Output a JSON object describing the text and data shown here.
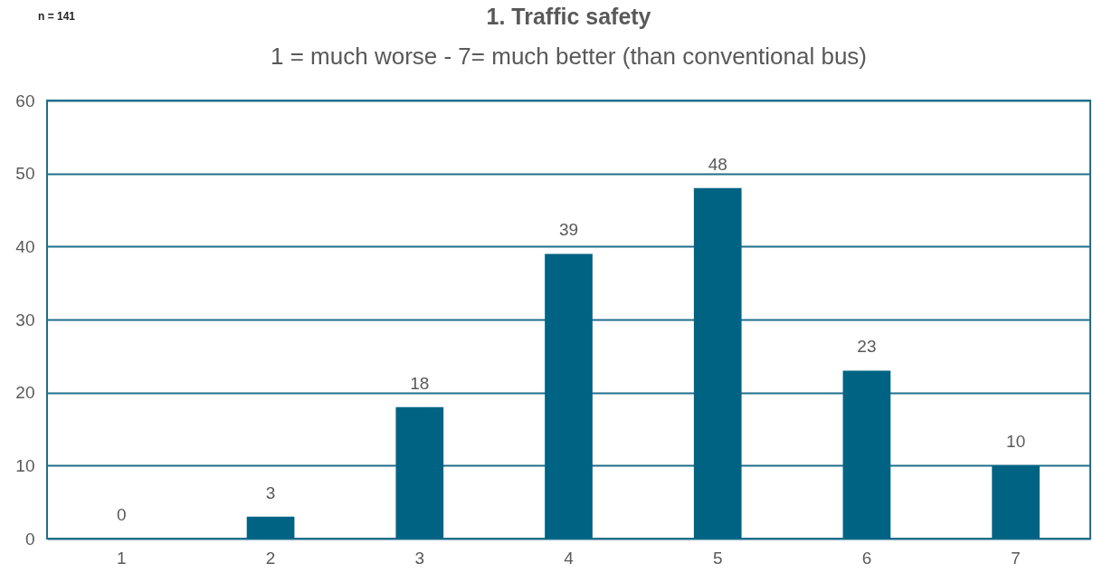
{
  "chart_data": {
    "type": "bar",
    "title": "1. Traffic safety",
    "subtitle": "1 = much worse - 7= much better (than conventional bus)",
    "annotations": [
      "n = 141"
    ],
    "categories": [
      "1",
      "2",
      "3",
      "4",
      "5",
      "6",
      "7"
    ],
    "values": [
      0,
      3,
      18,
      39,
      48,
      23,
      10
    ],
    "color": "#006384",
    "ylim": [
      0,
      60
    ],
    "yticks": [
      0,
      10,
      20,
      30,
      40,
      50,
      60
    ],
    "grid": "y",
    "data_labels": true
  }
}
